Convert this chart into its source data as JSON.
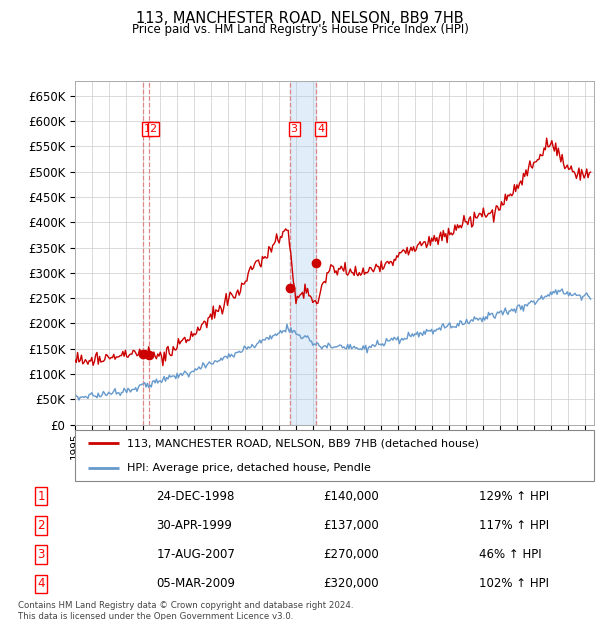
{
  "title": "113, MANCHESTER ROAD, NELSON, BB9 7HB",
  "subtitle": "Price paid vs. HM Land Registry's House Price Index (HPI)",
  "footer": "Contains HM Land Registry data © Crown copyright and database right 2024.\nThis data is licensed under the Open Government Licence v3.0.",
  "legend_red": "113, MANCHESTER ROAD, NELSON, BB9 7HB (detached house)",
  "legend_blue": "HPI: Average price, detached house, Pendle",
  "transactions": [
    {
      "num": 1,
      "date": "24-DEC-1998",
      "price": 140000,
      "hpi": "129% ↑ HPI",
      "year": 1998.98
    },
    {
      "num": 2,
      "date": "30-APR-1999",
      "price": 137000,
      "hpi": "117% ↑ HPI",
      "year": 1999.33
    },
    {
      "num": 3,
      "date": "17-AUG-2007",
      "price": 270000,
      "hpi": "46% ↑ HPI",
      "year": 2007.62
    },
    {
      "num": 4,
      "date": "05-MAR-2009",
      "price": 320000,
      "hpi": "102% ↑ HPI",
      "year": 2009.17
    }
  ],
  "hpi_color": "#6699cc",
  "price_color": "#cc0000",
  "vline_color_red": "#dd8888",
  "vline_color_blue": "#aaccee",
  "ylim": [
    0,
    680000
  ],
  "yticks": [
    0,
    50000,
    100000,
    150000,
    200000,
    250000,
    300000,
    350000,
    400000,
    450000,
    500000,
    550000,
    600000,
    650000
  ],
  "xlim_start": 1995.0,
  "xlim_end": 2025.5,
  "fig_width": 6.0,
  "fig_height": 6.2,
  "dpi": 100
}
